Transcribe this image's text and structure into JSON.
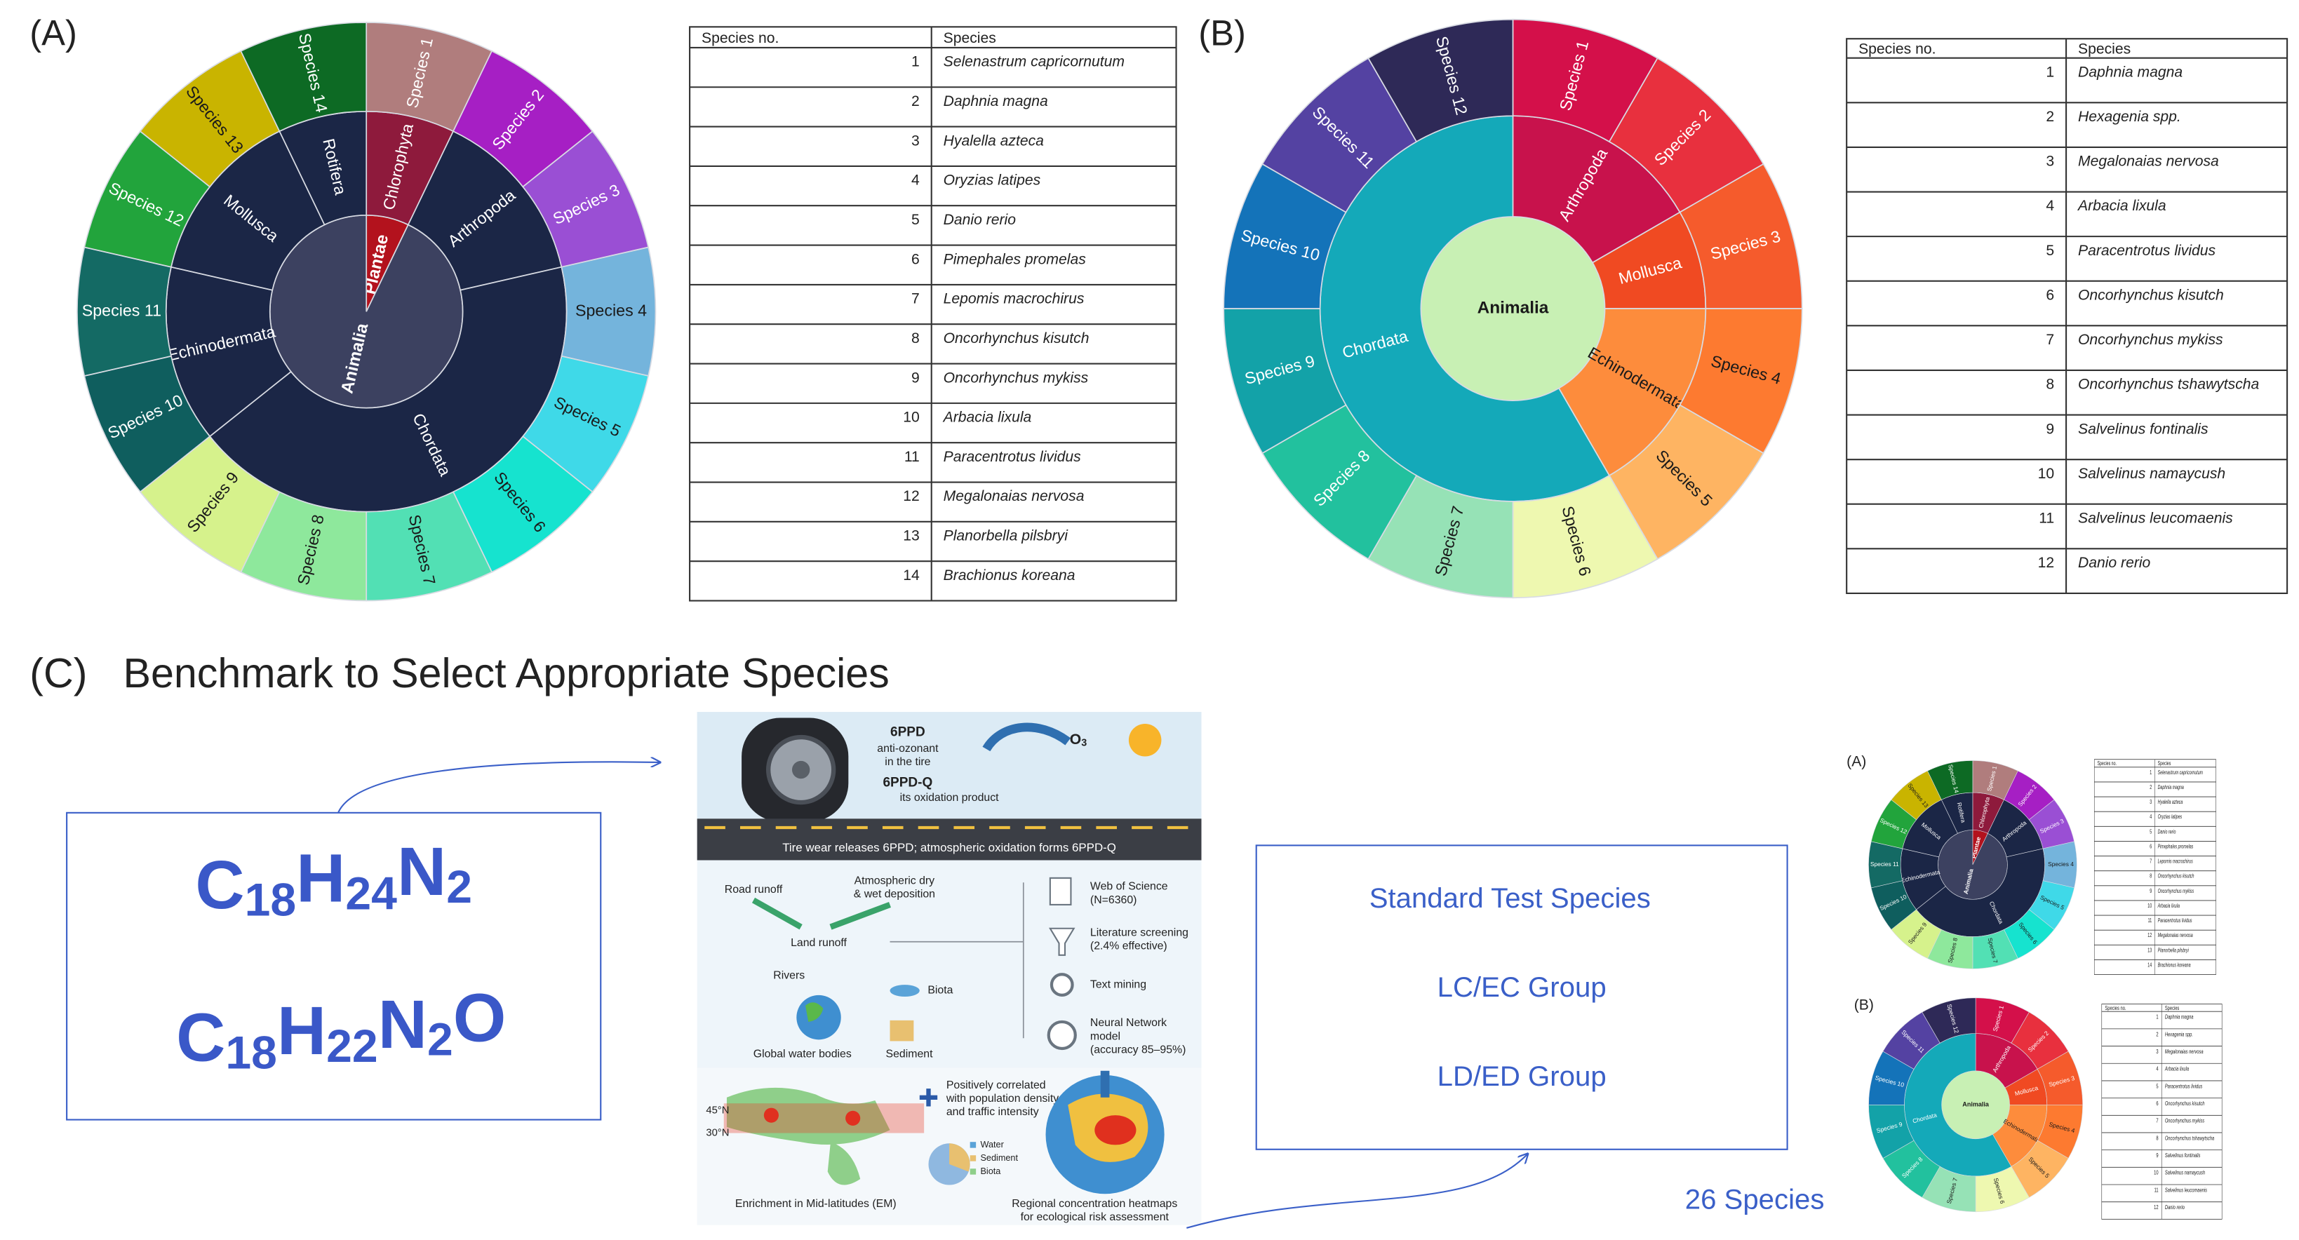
{
  "panel_a": {
    "label": "(A)",
    "sunburst": [
      {
        "name": "Plantae",
        "color": "#b3121d",
        "children": [
          {
            "name": "Chlorophyta",
            "color": "#8e1a3c",
            "children": [
              {
                "name": "Species 1",
                "color": "#b07d7d"
              }
            ]
          }
        ]
      },
      {
        "name": "Animalia",
        "color": "#3c4160",
        "children": [
          {
            "name": "Arthropoda",
            "color": "#1b2646",
            "children": [
              {
                "name": "Species 2",
                "color": "#a61fc4"
              },
              {
                "name": "Species 3",
                "color": "#9a4fd4"
              }
            ]
          },
          {
            "name": "Chordata",
            "color": "#1b2646",
            "children": [
              {
                "name": "Species 4",
                "color": "#74b4dc"
              },
              {
                "name": "Species 5",
                "color": "#3fd9e8"
              },
              {
                "name": "Species 6",
                "color": "#16e3cf"
              },
              {
                "name": "Species 7",
                "color": "#52e0b4"
              },
              {
                "name": "Species 8",
                "color": "#8ee89c"
              },
              {
                "name": "Species 9",
                "color": "#d6f28c"
              }
            ]
          },
          {
            "name": "Echinodermata",
            "color": "#1b2646",
            "children": [
              {
                "name": "Species 10",
                "color": "#0f5e5e"
              },
              {
                "name": "Species 11",
                "color": "#146a64"
              }
            ]
          },
          {
            "name": "Mollusca",
            "color": "#1b2646",
            "children": [
              {
                "name": "Species 12",
                "color": "#22a43c"
              },
              {
                "name": "Species 13",
                "color": "#c9b400"
              }
            ]
          },
          {
            "name": "Rotifera",
            "color": "#1b2646",
            "children": [
              {
                "name": "Species 14",
                "color": "#0d6a24"
              }
            ]
          }
        ]
      }
    ],
    "table": {
      "header": [
        "Species no.",
        "Species"
      ],
      "rows": [
        [
          1,
          "Selenastrum capricornutum"
        ],
        [
          2,
          "Daphnia magna"
        ],
        [
          3,
          "Hyalella azteca"
        ],
        [
          4,
          "Oryzias latipes"
        ],
        [
          5,
          "Danio rerio"
        ],
        [
          6,
          "Pimephales promelas"
        ],
        [
          7,
          "Lepomis macrochirus"
        ],
        [
          8,
          "Oncorhynchus kisutch"
        ],
        [
          9,
          "Oncorhynchus mykiss"
        ],
        [
          10,
          "Arbacia lixula"
        ],
        [
          11,
          "Paracentrotus lividus"
        ],
        [
          12,
          "Megalonaias nervosa"
        ],
        [
          13,
          "Planorbella pilsbryi"
        ],
        [
          14,
          "Brachionus koreana"
        ]
      ]
    }
  },
  "panel_b": {
    "label": "(B)",
    "sunburst": [
      {
        "name": "Animalia",
        "color": "#c8f0b4",
        "children": [
          {
            "name": "Arthropoda",
            "color": "#c8124c",
            "children": [
              {
                "name": "Species 1",
                "color": "#d4104a"
              },
              {
                "name": "Species 2",
                "color": "#e8303e"
              }
            ]
          },
          {
            "name": "Mollusca",
            "color": "#f04a22",
            "children": [
              {
                "name": "Species 3",
                "color": "#f55b2c"
              }
            ]
          },
          {
            "name": "Echinodermata",
            "color": "#fd8c3c",
            "children": [
              {
                "name": "Species 4",
                "color": "#fd7a30"
              },
              {
                "name": "Species 5",
                "color": "#feb462"
              }
            ]
          },
          {
            "name": "Chordata",
            "color": "#14a9b9",
            "children": [
              {
                "name": "Species 6",
                "color": "#eef8b0"
              },
              {
                "name": "Species 7",
                "color": "#96e2b6"
              },
              {
                "name": "Species 8",
                "color": "#22c19e"
              },
              {
                "name": "Species 9",
                "color": "#13a2a8"
              },
              {
                "name": "Species 10",
                "color": "#1473b9"
              },
              {
                "name": "Species 11",
                "color": "#5442a2"
              },
              {
                "name": "Species 12",
                "color": "#2e2957"
              }
            ]
          }
        ]
      }
    ],
    "table": {
      "header": [
        "Species no.",
        "Species"
      ],
      "rows": [
        [
          1,
          "Daphnia magna"
        ],
        [
          2,
          "Hexagenia spp."
        ],
        [
          3,
          "Megalonaias nervosa"
        ],
        [
          4,
          "Arbacia lixula"
        ],
        [
          5,
          "Paracentrotus lividus"
        ],
        [
          6,
          "Oncorhynchus kisutch"
        ],
        [
          7,
          "Oncorhynchus mykiss"
        ],
        [
          8,
          "Oncorhynchus tshawytscha"
        ],
        [
          9,
          "Salvelinus fontinalis"
        ],
        [
          10,
          "Salvelinus namaycush"
        ],
        [
          11,
          "Salvelinus leucomaenis"
        ],
        [
          12,
          "Danio rerio"
        ]
      ]
    }
  },
  "panel_c": {
    "label": "(C)",
    "title": "Benchmark to Select Appropriate Species",
    "formulas": [
      "C18H24N2",
      "C18H22N2O"
    ],
    "abstract": {
      "tire_name": "6PPD",
      "tire_desc": [
        "anti-ozonant",
        "in the tire"
      ],
      "product_name": "6PPD-Q",
      "product_desc": "its oxidation product",
      "ozone": "O3",
      "road_caption": "Tire wear releases 6PPD; atmospheric oxidation forms 6PPD-Q",
      "road_runoff": "Road runoff",
      "deposition": [
        "Atmospheric dry",
        "& wet deposition"
      ],
      "land_runoff": "Land runoff",
      "rivers": "Rivers",
      "biota": "Biota",
      "water_bodies": "Global water bodies",
      "sediment": "Sediment",
      "workflow": [
        [
          "Web of Science",
          "(N=6360)"
        ],
        [
          "Literature screening",
          "(2.4% effective)"
        ],
        [
          "Text mining"
        ],
        [
          "Neural Network",
          "model",
          "(accuracy 85–95%)"
        ]
      ],
      "correlation": [
        "Positively correlated",
        "with population density",
        "and traffic intensity"
      ],
      "latitudes": [
        "45°N",
        "30°N"
      ],
      "legend": [
        "Water",
        "Sediment",
        "Biota"
      ],
      "em_caption": "Enrichment in Mid-latitudes (EM)",
      "heatmap_caption": [
        "Regional concentration heatmaps",
        "for ecological risk assessment"
      ]
    },
    "groups": [
      "Standard Test Species",
      "LC/EC Group",
      "LD/ED Group"
    ],
    "total": "26 Species"
  }
}
